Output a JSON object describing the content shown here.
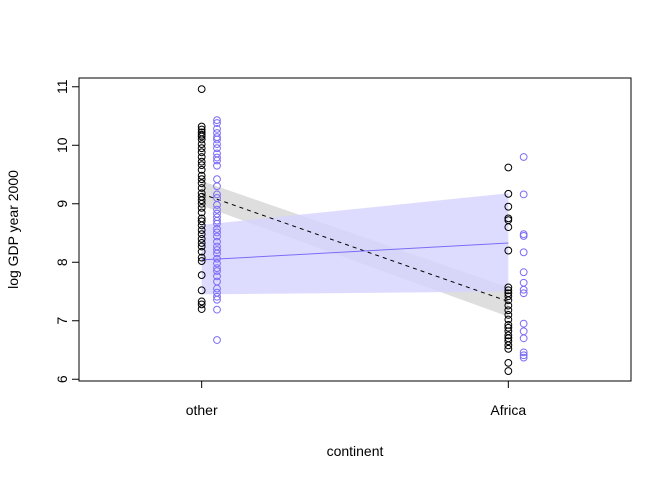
{
  "chart_data": {
    "type": "scatter",
    "title": "",
    "xlabel": "continent",
    "ylabel": "log GDP year 2000",
    "categories": [
      "other",
      "Africa"
    ],
    "x_range": [
      0.6,
      2.4
    ],
    "ylim": [
      5.97,
      11.15
    ],
    "yticks": [
      6,
      7,
      8,
      9,
      10,
      11
    ],
    "grid": false,
    "legend": "none",
    "colors": {
      "group_a": "#000000",
      "group_b": "#7b6cf6",
      "band_a": "#d6d6d6",
      "band_b": "#d4d3ff"
    },
    "series": [
      {
        "group": "a",
        "x": 1,
        "values": [
          10.96,
          10.32,
          10.27,
          10.22,
          10.18,
          10.15,
          10.1,
          10.02,
          9.95,
          9.88,
          9.8,
          9.72,
          9.66,
          9.58,
          9.48,
          9.42,
          9.35,
          9.27,
          9.18,
          9.12,
          9.06,
          9.0,
          8.93,
          8.85,
          8.75,
          8.7,
          8.63,
          8.55,
          8.48,
          8.4,
          8.33,
          8.27,
          8.18,
          8.08,
          8.02,
          7.78,
          7.52,
          7.33,
          7.28,
          7.2
        ]
      },
      {
        "group": "b",
        "x": 1.05,
        "values": [
          10.43,
          10.38,
          10.28,
          10.21,
          10.14,
          10.1,
          10.02,
          9.95,
          9.86,
          9.79,
          9.74,
          9.65,
          9.42,
          9.3,
          9.16,
          9.1,
          8.98,
          8.9,
          8.83,
          8.77,
          8.71,
          8.66,
          8.57,
          8.51,
          8.44,
          8.35,
          8.27,
          8.21,
          8.15,
          8.06,
          7.98,
          7.9,
          7.85,
          7.76,
          7.67,
          7.55,
          7.48,
          7.41,
          7.36,
          7.19,
          6.67
        ]
      },
      {
        "group": "a",
        "x": 2,
        "values": [
          9.62,
          9.17,
          8.95,
          8.75,
          8.72,
          8.6,
          8.2,
          7.57,
          7.52,
          7.47,
          7.42,
          7.35,
          7.26,
          7.18,
          7.1,
          7.02,
          6.93,
          6.88,
          6.82,
          6.75,
          6.7,
          6.65,
          6.58,
          6.52,
          6.28,
          6.14
        ]
      },
      {
        "group": "b",
        "x": 2.05,
        "values": [
          9.8,
          9.16,
          8.48,
          8.45,
          8.17,
          7.83,
          7.65,
          7.53,
          7.47,
          6.95,
          6.82,
          6.7,
          6.46,
          6.41,
          6.37
        ]
      }
    ],
    "fits": [
      {
        "group": "a",
        "line": "dashed",
        "x": [
          1,
          2
        ],
        "y": [
          9.17,
          7.33
        ],
        "lower": [
          8.97,
          7.07
        ],
        "upper": [
          9.39,
          7.57
        ]
      },
      {
        "group": "b",
        "line": "solid",
        "x": [
          1,
          2
        ],
        "y": [
          8.04,
          8.33
        ],
        "lower": [
          7.45,
          7.5
        ],
        "upper": [
          8.64,
          9.18
        ]
      }
    ]
  }
}
